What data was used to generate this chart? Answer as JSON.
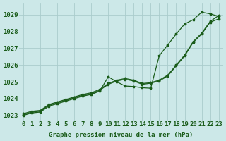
{
  "title": "Graphe pression niveau de la mer (hPa)",
  "background_color": "#cce8e8",
  "grid_color": "#aacccc",
  "line_color": "#1a5c1a",
  "x_labels": [
    "0",
    "1",
    "2",
    "3",
    "4",
    "5",
    "6",
    "7",
    "8",
    "9",
    "10",
    "11",
    "12",
    "13",
    "14",
    "15",
    "16",
    "17",
    "18",
    "19",
    "20",
    "21",
    "22",
    "23"
  ],
  "ylim": [
    1022.7,
    1029.7
  ],
  "yticks": [
    1023,
    1024,
    1025,
    1026,
    1027,
    1028,
    1029
  ],
  "series1": [
    1023.0,
    1023.15,
    1023.2,
    1023.55,
    1023.7,
    1023.85,
    1024.0,
    1024.15,
    1024.25,
    1024.45,
    1025.3,
    1025.0,
    1024.75,
    1024.72,
    1024.65,
    1024.62,
    1026.55,
    1027.2,
    1027.85,
    1028.45,
    1028.7,
    1029.15,
    1029.05,
    1028.9
  ],
  "series2": [
    1023.05,
    1023.2,
    1023.25,
    1023.6,
    1023.75,
    1023.9,
    1024.05,
    1024.2,
    1024.3,
    1024.5,
    1024.85,
    1025.05,
    1025.15,
    1025.05,
    1024.85,
    1024.92,
    1025.05,
    1025.35,
    1025.95,
    1026.55,
    1027.35,
    1027.85,
    1028.55,
    1028.75
  ],
  "series3": [
    1023.1,
    1023.25,
    1023.3,
    1023.65,
    1023.8,
    1023.95,
    1024.1,
    1024.25,
    1024.35,
    1024.55,
    1024.9,
    1025.1,
    1025.2,
    1025.1,
    1024.9,
    1024.95,
    1025.1,
    1025.4,
    1026.0,
    1026.6,
    1027.4,
    1027.9,
    1028.6,
    1028.95
  ],
  "marker_size": 2.5,
  "linewidth": 0.9,
  "xlabel_fontsize": 6.5,
  "title_fontsize": 6.5,
  "ylabel_fontsize": 6.5
}
